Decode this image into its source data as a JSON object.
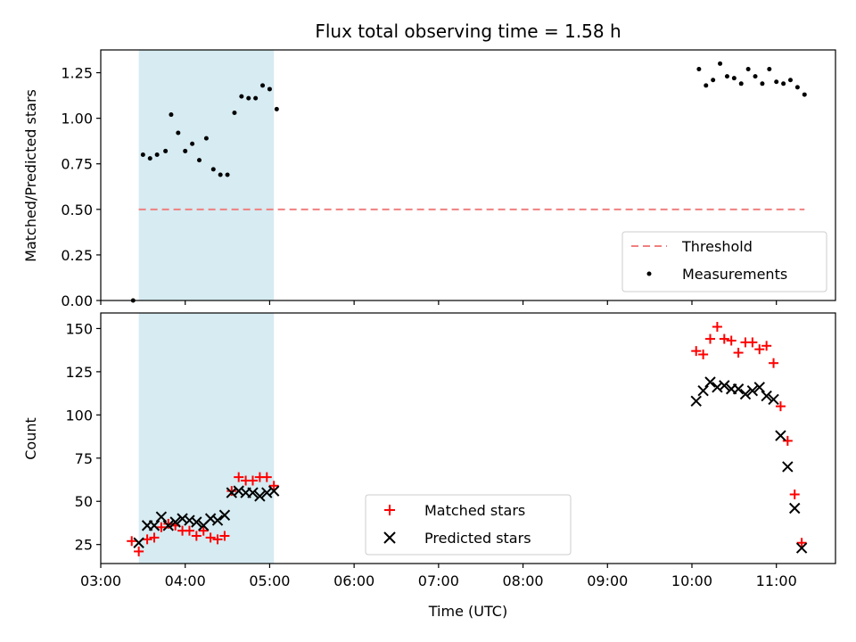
{
  "chart_data": [
    {
      "type": "scatter",
      "title": "Flux total observing time = 1.58 h",
      "xlabel": "",
      "ylabel": "Matched/Predicted stars",
      "ylim": [
        0,
        1.375
      ],
      "xlim": [
        "03:00",
        "11:42"
      ],
      "yticks": [
        "0.00",
        "0.25",
        "0.50",
        "0.75",
        "1.00",
        "1.25"
      ],
      "shaded_interval": [
        "03:27",
        "05:03"
      ],
      "legend": {
        "placement": "lower right",
        "entries": [
          "Threshold",
          "Measurements"
        ]
      },
      "series": [
        {
          "name": "Threshold",
          "style": "dashed-line",
          "color": "#f08080",
          "points": [
            [
              "03:27",
              0.5
            ],
            [
              "11:20",
              0.5
            ]
          ]
        },
        {
          "name": "Measurements",
          "style": "dot",
          "color": "#000000",
          "points": [
            [
              "03:23",
              0.0
            ],
            [
              "03:30",
              0.8
            ],
            [
              "03:35",
              0.78
            ],
            [
              "03:40",
              0.8
            ],
            [
              "03:46",
              0.82
            ],
            [
              "03:50",
              1.02
            ],
            [
              "03:55",
              0.92
            ],
            [
              "04:00",
              0.82
            ],
            [
              "04:05",
              0.86
            ],
            [
              "04:10",
              0.77
            ],
            [
              "04:15",
              0.89
            ],
            [
              "04:20",
              0.72
            ],
            [
              "04:25",
              0.69
            ],
            [
              "04:30",
              0.69
            ],
            [
              "04:35",
              1.03
            ],
            [
              "04:40",
              1.12
            ],
            [
              "04:45",
              1.11
            ],
            [
              "04:50",
              1.11
            ],
            [
              "04:55",
              1.18
            ],
            [
              "05:00",
              1.16
            ],
            [
              "05:05",
              1.05
            ],
            [
              "10:05",
              1.27
            ],
            [
              "10:10",
              1.18
            ],
            [
              "10:15",
              1.21
            ],
            [
              "10:20",
              1.3
            ],
            [
              "10:25",
              1.23
            ],
            [
              "10:30",
              1.22
            ],
            [
              "10:35",
              1.19
            ],
            [
              "10:40",
              1.27
            ],
            [
              "10:45",
              1.23
            ],
            [
              "10:50",
              1.19
            ],
            [
              "10:55",
              1.27
            ],
            [
              "11:00",
              1.2
            ],
            [
              "11:05",
              1.19
            ],
            [
              "11:10",
              1.21
            ],
            [
              "11:15",
              1.17
            ],
            [
              "11:20",
              1.13
            ]
          ]
        }
      ]
    },
    {
      "type": "scatter",
      "title": "",
      "xlabel": "Time (UTC)",
      "ylabel": "Count",
      "ylim": [
        14,
        159
      ],
      "xlim": [
        "03:00",
        "11:42"
      ],
      "yticks": [
        "25",
        "50",
        "75",
        "100",
        "125",
        "150"
      ],
      "xticks": [
        "03:00",
        "04:00",
        "05:00",
        "06:00",
        "07:00",
        "08:00",
        "09:00",
        "10:00",
        "11:00"
      ],
      "shaded_interval": [
        "03:27",
        "05:03"
      ],
      "legend": {
        "placement": "lower center",
        "entries": [
          "Matched stars",
          "Predicted stars"
        ]
      },
      "series": [
        {
          "name": "Matched stars",
          "style": "plus",
          "color": "#ff0000",
          "points": [
            [
              "03:22",
              27
            ],
            [
              "03:27",
              21
            ],
            [
              "03:33",
              28
            ],
            [
              "03:38",
              29
            ],
            [
              "03:43",
              35
            ],
            [
              "03:48",
              37
            ],
            [
              "03:53",
              36
            ],
            [
              "03:58",
              33
            ],
            [
              "04:03",
              33
            ],
            [
              "04:08",
              30
            ],
            [
              "04:13",
              33
            ],
            [
              "04:18",
              29
            ],
            [
              "04:23",
              28
            ],
            [
              "04:28",
              30
            ],
            [
              "04:33",
              56
            ],
            [
              "04:38",
              64
            ],
            [
              "04:43",
              62
            ],
            [
              "04:48",
              62
            ],
            [
              "04:53",
              64
            ],
            [
              "04:58",
              64
            ],
            [
              "05:03",
              59
            ],
            [
              "10:03",
              137
            ],
            [
              "10:08",
              135
            ],
            [
              "10:13",
              144
            ],
            [
              "10:18",
              151
            ],
            [
              "10:23",
              144
            ],
            [
              "10:28",
              143
            ],
            [
              "10:33",
              136
            ],
            [
              "10:38",
              142
            ],
            [
              "10:43",
              142
            ],
            [
              "10:48",
              138
            ],
            [
              "10:53",
              140
            ],
            [
              "10:58",
              130
            ],
            [
              "11:03",
              105
            ],
            [
              "11:08",
              85
            ],
            [
              "11:13",
              54
            ],
            [
              "11:18",
              26
            ]
          ]
        },
        {
          "name": "Predicted stars",
          "style": "x",
          "color": "#000000",
          "points": [
            [
              "03:27",
              26
            ],
            [
              "03:33",
              36
            ],
            [
              "03:38",
              36
            ],
            [
              "03:43",
              41
            ],
            [
              "03:48",
              36
            ],
            [
              "03:53",
              38
            ],
            [
              "03:58",
              40
            ],
            [
              "04:03",
              39
            ],
            [
              "04:08",
              38
            ],
            [
              "04:13",
              36
            ],
            [
              "04:18",
              40
            ],
            [
              "04:23",
              39
            ],
            [
              "04:28",
              42
            ],
            [
              "04:33",
              55
            ],
            [
              "04:38",
              56
            ],
            [
              "04:43",
              55
            ],
            [
              "04:48",
              55
            ],
            [
              "04:53",
              53
            ],
            [
              "04:58",
              55
            ],
            [
              "05:03",
              56
            ],
            [
              "10:03",
              108
            ],
            [
              "10:08",
              114
            ],
            [
              "10:13",
              119
            ],
            [
              "10:18",
              116
            ],
            [
              "10:23",
              117
            ],
            [
              "10:28",
              115
            ],
            [
              "10:33",
              115
            ],
            [
              "10:38",
              112
            ],
            [
              "10:43",
              114
            ],
            [
              "10:48",
              116
            ],
            [
              "10:53",
              111
            ],
            [
              "10:58",
              109
            ],
            [
              "11:03",
              88
            ],
            [
              "11:08",
              70
            ],
            [
              "11:13",
              46
            ],
            [
              "11:18",
              23
            ]
          ]
        }
      ]
    }
  ]
}
